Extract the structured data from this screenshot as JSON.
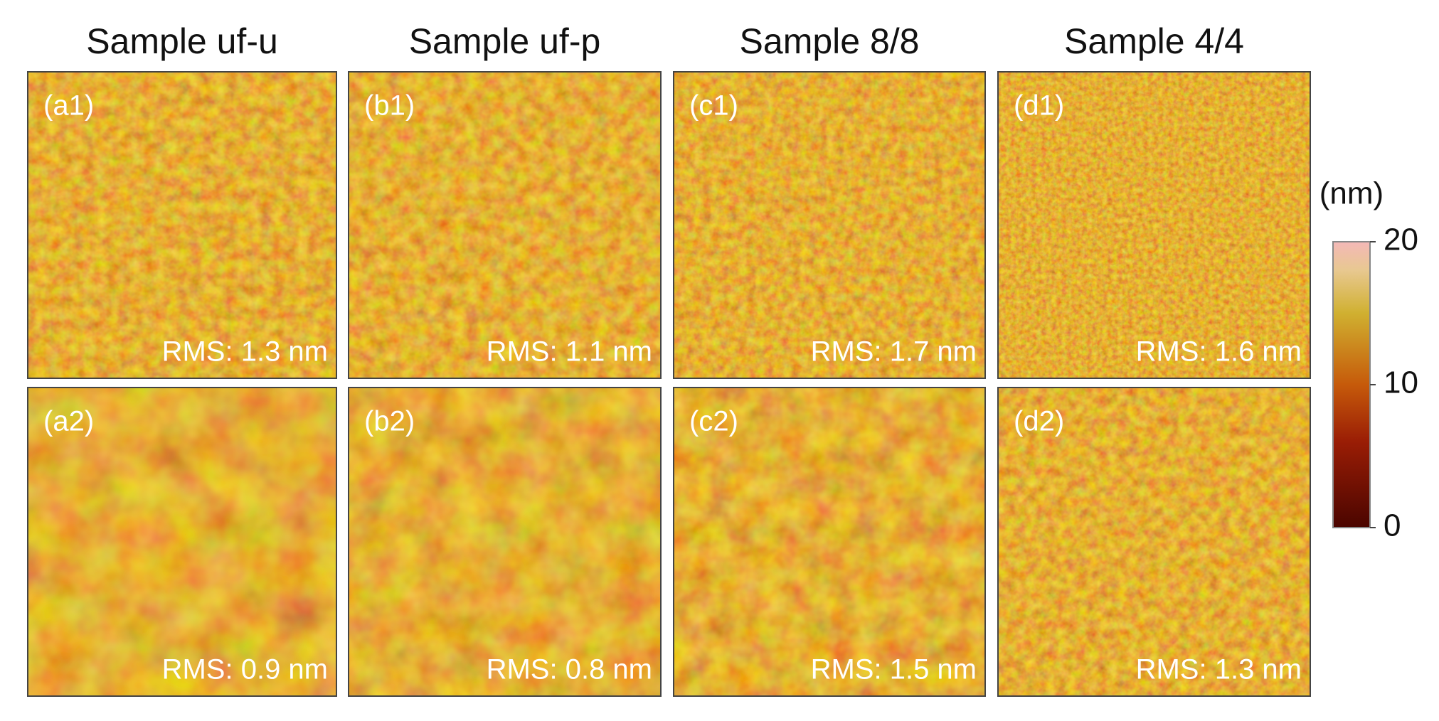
{
  "columns": [
    "Sample uf-u",
    "Sample uf-p",
    "Sample 8/8",
    "Sample 4/4"
  ],
  "panels": [
    {
      "label": "(a1)",
      "rms": "RMS: 1.3 nm"
    },
    {
      "label": "(b1)",
      "rms": "RMS: 1.1 nm"
    },
    {
      "label": "(c1)",
      "rms": "RMS: 1.7 nm"
    },
    {
      "label": "(d1)",
      "rms": "RMS: 1.6 nm"
    },
    {
      "label": "(a2)",
      "rms": "RMS: 0.9 nm"
    },
    {
      "label": "(b2)",
      "rms": "RMS: 0.8 nm"
    },
    {
      "label": "(c2)",
      "rms": "RMS: 1.5 nm"
    },
    {
      "label": "(d2)",
      "rms": "RMS: 1.3 nm"
    }
  ],
  "colorbar": {
    "unit": "(nm)",
    "lim": [
      0,
      20
    ],
    "ticks": [
      0,
      10,
      20
    ]
  }
}
